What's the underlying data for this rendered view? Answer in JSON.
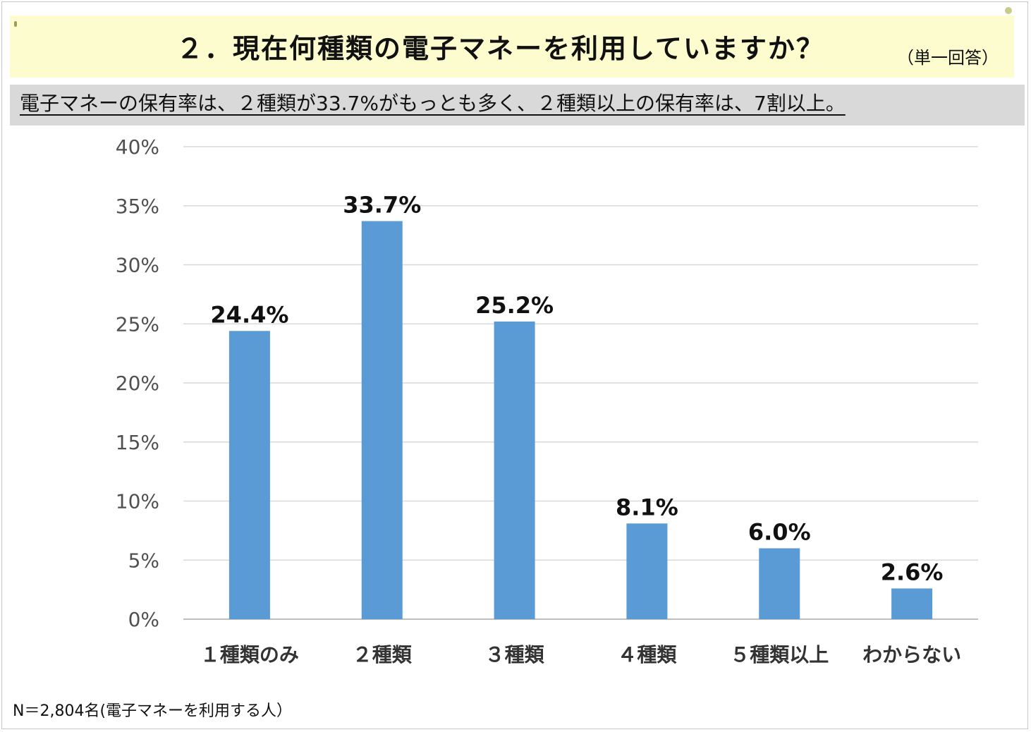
{
  "header": {
    "title": "２．現在何種類の電子マネーを利用していますか？",
    "note": "（単一回答）"
  },
  "summary": "電子マネーの保有率は、２種類が33.7%がもっとも多く、２種類以上の保有率は、7割以上。",
  "footnote": "N＝2,804名(電子マネーを利用する人）",
  "colors": {
    "bar": "#5b9bd5",
    "highlight_label": "#e8101e",
    "label": "#111111",
    "title_band": "#fdfccf",
    "summary_band": "#d9d9d9"
  },
  "chart_data": {
    "type": "bar",
    "categories": [
      "１種類のみ",
      "２種類",
      "３種類",
      "４種類",
      "５種類以上",
      "わからない"
    ],
    "values": [
      24.4,
      33.7,
      25.2,
      8.1,
      6.0,
      2.6
    ],
    "data_labels": [
      "24.4%",
      "33.7%",
      "25.2%",
      "8.1%",
      "6.0%",
      "2.6%"
    ],
    "highlight_index": 1,
    "ylim": [
      0,
      40
    ],
    "yticks": [
      0,
      5,
      10,
      15,
      20,
      25,
      30,
      35,
      40
    ],
    "ytick_labels": [
      "0%",
      "5%",
      "10%",
      "15%",
      "20%",
      "25%",
      "30%",
      "35%",
      "40%"
    ],
    "grid": true,
    "legend": "none"
  }
}
